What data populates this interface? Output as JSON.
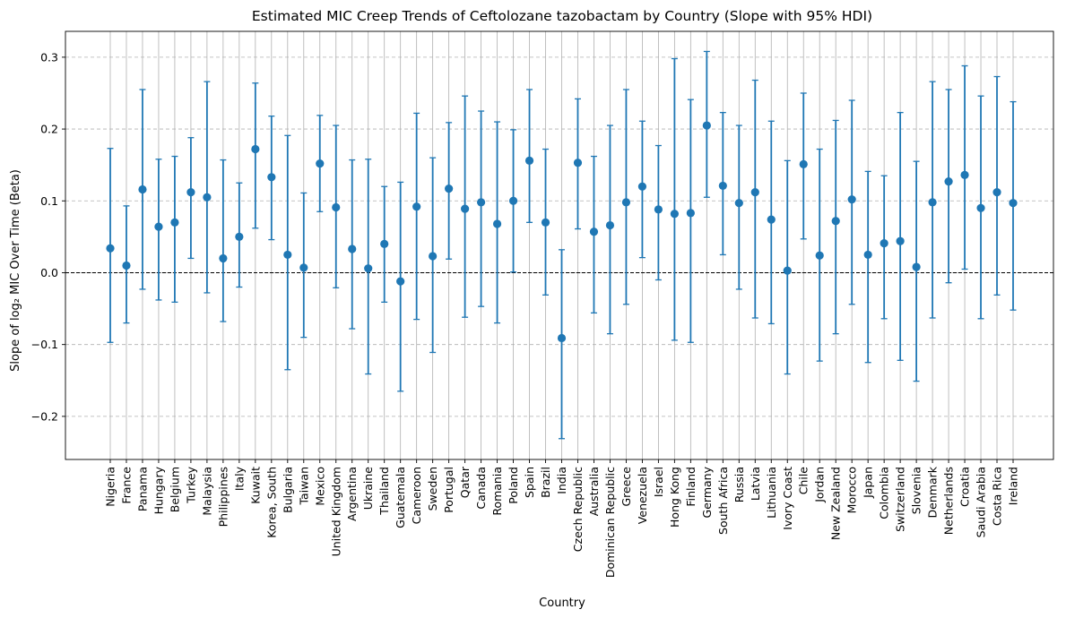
{
  "chart_data": {
    "type": "scatter",
    "title": "Estimated MIC Creep Trends of Ceftolozane tazobactam by Country (Slope with 95% HDI)",
    "xlabel": "Country",
    "ylabel": "Slope of log₂ MIC Over Time (Beta)",
    "ylim": [
      -0.26,
      0.336
    ],
    "yticks": [
      -0.2,
      -0.1,
      0.0,
      0.1,
      0.2,
      0.3
    ],
    "ytick_labels": [
      "−0.2",
      "−0.1",
      "0.0",
      "0.1",
      "0.2",
      "0.3"
    ],
    "grid": "vertical solid at each category, horizontal dashed at y ticks",
    "reference_line": 0.0,
    "colors": {
      "marker": "#1f77b4",
      "errorbar": "#1f77b4",
      "grid": "#b0b0b0",
      "reference": "#000000"
    },
    "categories": [
      "Nigeria",
      "France",
      "Panama",
      "Hungary",
      "Belgium",
      "Turkey",
      "Malaysia",
      "Philippines",
      "Italy",
      "Kuwait",
      "Korea, South",
      "Bulgaria",
      "Taiwan",
      "Mexico",
      "United Kingdom",
      "Argentina",
      "Ukraine",
      "Thailand",
      "Guatemala",
      "Cameroon",
      "Sweden",
      "Portugal",
      "Qatar",
      "Canada",
      "Romania",
      "Poland",
      "Spain",
      "Brazil",
      "India",
      "Czech Republic",
      "Australia",
      "Dominican Republic",
      "Greece",
      "Venezuela",
      "Israel",
      "Hong Kong",
      "Finland",
      "Germany",
      "South Africa",
      "Russia",
      "Latvia",
      "Lithuania",
      "Ivory Coast",
      "Chile",
      "Jordan",
      "New Zealand",
      "Morocco",
      "Japan",
      "Colombia",
      "Switzerland",
      "Slovenia",
      "Denmark",
      "Netherlands",
      "Croatia",
      "Saudi Arabia",
      "Costa Rica",
      "Ireland"
    ],
    "series": [
      {
        "values": [
          0.034,
          0.01,
          0.116,
          0.064,
          0.07,
          0.112,
          0.105,
          0.02,
          0.05,
          0.172,
          0.133,
          0.025,
          0.007,
          0.152,
          0.091,
          0.033,
          0.006,
          0.04,
          -0.012,
          0.092,
          0.023,
          0.117,
          0.089,
          0.098,
          0.068,
          0.1,
          0.156,
          0.07,
          -0.091,
          0.153,
          0.057,
          0.066,
          0.098,
          0.12,
          0.088,
          0.082,
          0.083,
          0.205,
          0.121,
          0.097,
          0.112,
          0.074,
          0.003,
          0.151,
          0.024,
          0.072,
          0.102,
          0.025,
          0.041,
          0.044,
          0.008,
          0.098,
          0.127,
          0.136,
          0.09,
          0.112,
          0.097
        ],
        "lower": [
          -0.097,
          -0.07,
          -0.023,
          -0.038,
          -0.041,
          0.02,
          -0.028,
          -0.068,
          -0.02,
          0.062,
          0.046,
          -0.135,
          -0.09,
          0.085,
          -0.021,
          -0.078,
          -0.141,
          -0.041,
          -0.165,
          -0.065,
          -0.111,
          0.019,
          -0.062,
          -0.047,
          -0.07,
          0.001,
          0.07,
          -0.031,
          -0.231,
          0.061,
          -0.056,
          -0.085,
          -0.044,
          0.021,
          -0.01,
          -0.094,
          -0.097,
          0.105,
          0.025,
          -0.023,
          -0.063,
          -0.071,
          -0.141,
          0.047,
          -0.123,
          -0.085,
          -0.044,
          -0.125,
          -0.064,
          -0.122,
          -0.151,
          -0.063,
          -0.014,
          0.005,
          -0.064,
          -0.031,
          -0.052
        ],
        "upper": [
          0.173,
          0.093,
          0.255,
          0.158,
          0.162,
          0.188,
          0.266,
          0.157,
          0.125,
          0.264,
          0.218,
          0.191,
          0.111,
          0.219,
          0.205,
          0.157,
          0.158,
          0.12,
          0.126,
          0.222,
          0.16,
          0.209,
          0.246,
          0.225,
          0.21,
          0.199,
          0.255,
          0.172,
          0.032,
          0.242,
          0.162,
          0.205,
          0.255,
          0.211,
          0.177,
          0.298,
          0.241,
          0.308,
          0.223,
          0.205,
          0.268,
          0.211,
          0.156,
          0.25,
          0.172,
          0.212,
          0.24,
          0.141,
          0.135,
          0.223,
          0.155,
          0.266,
          0.255,
          0.288,
          0.246,
          0.273,
          0.238
        ]
      }
    ]
  }
}
